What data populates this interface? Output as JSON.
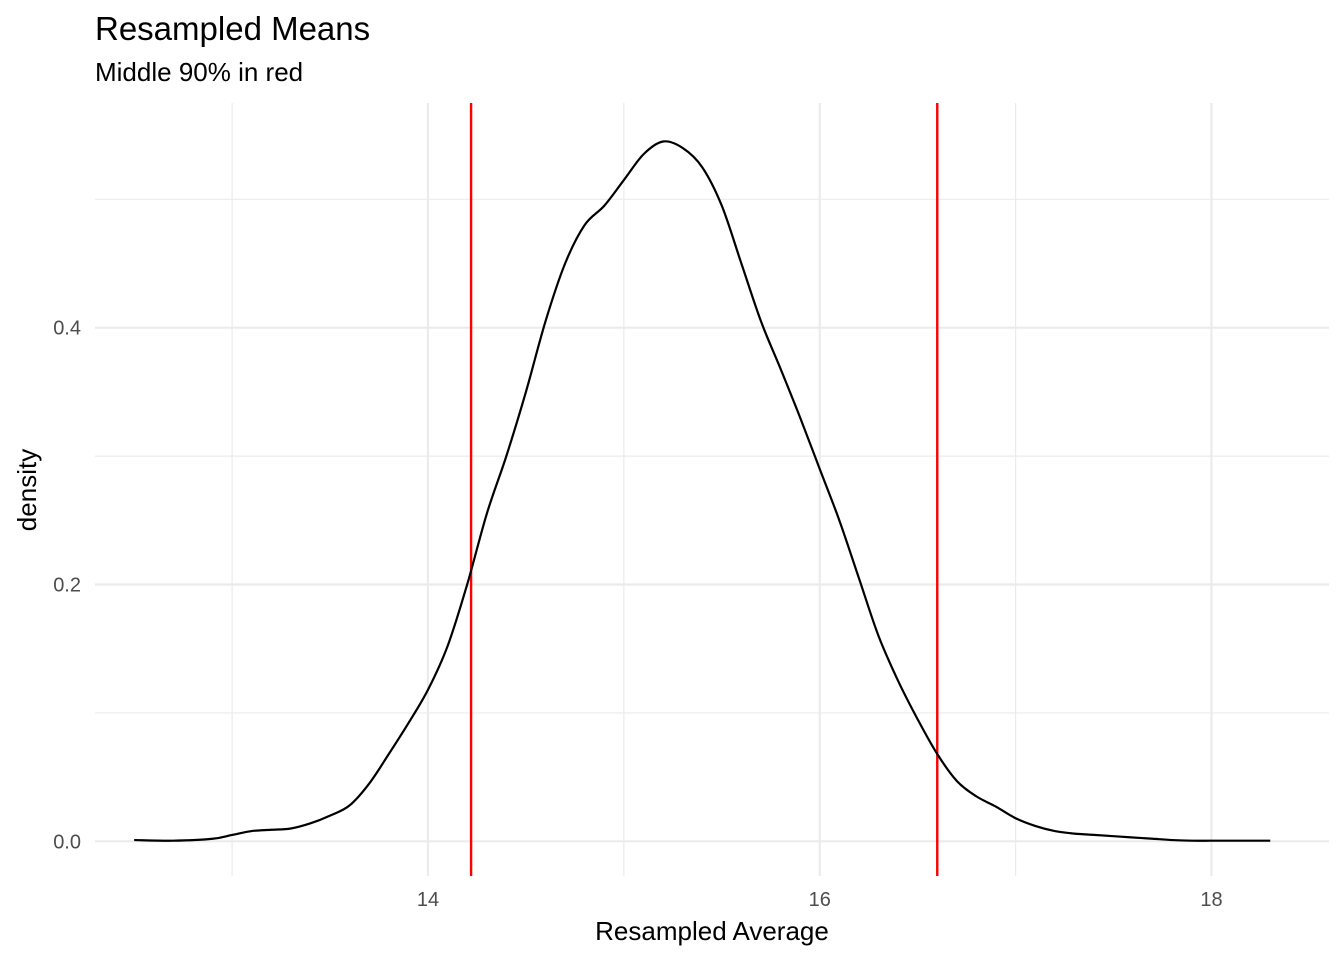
{
  "chart_data": {
    "type": "line",
    "title": "Resampled Means",
    "subtitle": "Middle 90% in red",
    "xlabel": "Resampled Average",
    "ylabel": "density",
    "xlim": [
      12.3,
      18.6
    ],
    "ylim": [
      -0.027,
      0.575
    ],
    "x_ticks_major": [
      14,
      16,
      18
    ],
    "x_ticks_minor": [
      13,
      15,
      17
    ],
    "y_ticks_major": [
      0.0,
      0.2,
      0.4
    ],
    "y_ticks_minor": [
      0.1,
      0.3,
      0.5
    ],
    "x_tick_labels": [
      "14",
      "16",
      "18"
    ],
    "y_tick_labels": [
      "0.0",
      "0.2",
      "0.4"
    ],
    "grid": true,
    "interval_color": "#ff0000",
    "line_color": "#000000",
    "interval_lines": [
      14.22,
      16.6
    ],
    "series": [
      {
        "x": [
          12.5,
          12.7,
          12.9,
          13.0,
          13.1,
          13.2,
          13.3,
          13.4,
          13.5,
          13.6,
          13.7,
          13.8,
          13.9,
          14.0,
          14.1,
          14.2,
          14.3,
          14.4,
          14.5,
          14.6,
          14.7,
          14.8,
          14.9,
          15.0,
          15.1,
          15.2,
          15.3,
          15.4,
          15.5,
          15.6,
          15.7,
          15.8,
          15.9,
          16.0,
          16.1,
          16.2,
          16.3,
          16.4,
          16.5,
          16.6,
          16.7,
          16.8,
          16.9,
          17.0,
          17.1,
          17.2,
          17.3,
          17.4,
          17.5,
          17.6,
          17.7,
          17.8,
          17.9,
          18.0,
          18.1,
          18.2,
          18.3
        ],
        "y": [
          0.001,
          0.0005,
          0.002,
          0.005,
          0.008,
          0.009,
          0.01,
          0.014,
          0.02,
          0.028,
          0.045,
          0.068,
          0.092,
          0.118,
          0.152,
          0.2,
          0.255,
          0.3,
          0.35,
          0.405,
          0.45,
          0.48,
          0.495,
          0.515,
          0.535,
          0.545,
          0.54,
          0.525,
          0.495,
          0.45,
          0.405,
          0.368,
          0.33,
          0.29,
          0.25,
          0.205,
          0.16,
          0.125,
          0.095,
          0.068,
          0.047,
          0.035,
          0.027,
          0.018,
          0.012,
          0.008,
          0.006,
          0.005,
          0.004,
          0.003,
          0.002,
          0.001,
          0.0005,
          0.0005,
          0.0005,
          0.0005,
          0.0005
        ]
      }
    ]
  }
}
